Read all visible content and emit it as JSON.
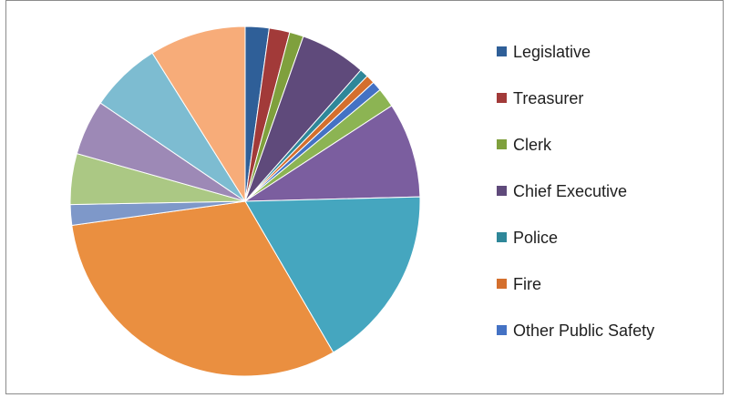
{
  "chart_data": {
    "type": "pie",
    "title": "",
    "start": "12 o'clock",
    "direction": "clockwise",
    "slices": [
      {
        "name": "Legislative",
        "value": 2.2,
        "color": "#2f5f98"
      },
      {
        "name": "Treasurer",
        "value": 1.9,
        "color": "#a23a39"
      },
      {
        "name": "Clerk",
        "value": 1.3,
        "color": "#7fa03d"
      },
      {
        "name": "Chief Executive",
        "value": 6.1,
        "color": "#5f4a7b"
      },
      {
        "name": "Police",
        "value": 0.8,
        "color": "#2f8799"
      },
      {
        "name": "Fire",
        "value": 0.8,
        "color": "#d46f2d"
      },
      {
        "name": "Other Public Safety",
        "value": 0.9,
        "color": "#4472c4"
      },
      {
        "name": "",
        "value": 1.8,
        "color": "#8cb453"
      },
      {
        "name": "",
        "value": 8.8,
        "color": "#7b5e9f"
      },
      {
        "name": "",
        "value": 17.0,
        "color": "#45a6bf"
      },
      {
        "name": "",
        "value": 31.2,
        "color": "#ea8f40"
      },
      {
        "name": "",
        "value": 1.9,
        "color": "#7e98c9"
      },
      {
        "name": "",
        "value": 4.7,
        "color": "#abc884"
      },
      {
        "name": "",
        "value": 5.1,
        "color": "#9d89b6"
      },
      {
        "name": "",
        "value": 6.6,
        "color": "#7dbcd1"
      },
      {
        "name": "",
        "value": 8.9,
        "color": "#f7ac79"
      }
    ],
    "legend": {
      "placement": "right",
      "entries": [
        "Legislative",
        "Treasurer",
        "Clerk",
        "Chief Executive",
        "Police",
        "Fire",
        "Other Public Safety"
      ]
    }
  }
}
